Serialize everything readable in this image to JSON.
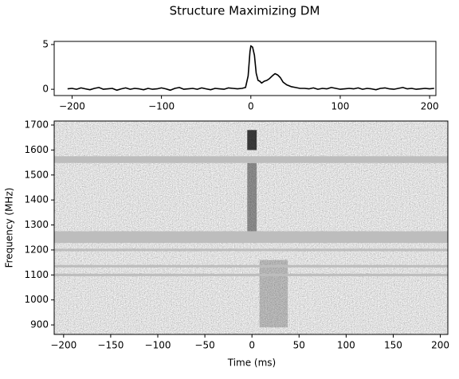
{
  "chart_data": [
    {
      "type": "line",
      "title": "Structure Maximizing DM",
      "color": "#000000",
      "x": [
        -205,
        -200,
        -195,
        -190,
        -185,
        -180,
        -175,
        -170,
        -165,
        -160,
        -155,
        -150,
        -145,
        -140,
        -135,
        -130,
        -125,
        -120,
        -115,
        -110,
        -105,
        -100,
        -95,
        -90,
        -85,
        -80,
        -75,
        -70,
        -65,
        -60,
        -55,
        -50,
        -45,
        -40,
        -35,
        -30,
        -25,
        -20,
        -15,
        -10,
        -6,
        -3,
        -1,
        0,
        2,
        4,
        6,
        8,
        10,
        12,
        15,
        18,
        21,
        24,
        27,
        30,
        33,
        36,
        40,
        45,
        50,
        55,
        60,
        65,
        70,
        75,
        80,
        85,
        90,
        95,
        100,
        105,
        110,
        115,
        120,
        125,
        130,
        135,
        140,
        145,
        150,
        155,
        160,
        165,
        170,
        175,
        180,
        185,
        190,
        195,
        200,
        205
      ],
      "values": [
        0.05,
        0.1,
        0,
        0.15,
        0.05,
        -0.05,
        0.1,
        0.2,
        0,
        0.05,
        0.1,
        -0.1,
        0.05,
        0.15,
        0,
        0.1,
        0.05,
        -0.05,
        0.1,
        0,
        0.05,
        0.15,
        0.05,
        -0.1,
        0.1,
        0.2,
        0,
        0.05,
        0.1,
        0,
        0.15,
        0.05,
        -0.05,
        0.1,
        0.05,
        0,
        0.15,
        0.1,
        0.05,
        0.1,
        0.2,
        1.5,
        4.2,
        4.85,
        4.7,
        3.8,
        1.8,
        1.0,
        0.9,
        0.7,
        0.9,
        1.0,
        1.2,
        1.5,
        1.75,
        1.6,
        1.3,
        0.8,
        0.5,
        0.3,
        0.2,
        0.1,
        0.1,
        0.05,
        0.15,
        0,
        0.1,
        0.05,
        0.2,
        0.1,
        0,
        0.05,
        0.1,
        0.05,
        0.15,
        0,
        0.1,
        0.05,
        -0.05,
        0.1,
        0.15,
        0.05,
        0,
        0.1,
        0.2,
        0.05,
        0.1,
        0,
        0.05,
        0.1,
        0.05,
        0.1
      ],
      "xlim": [
        -220,
        207
      ],
      "ylim": [
        -0.7,
        5.35
      ],
      "xticks": [
        {
          "value": -200,
          "label": "−200"
        },
        {
          "value": -100,
          "label": "−100"
        },
        0,
        100,
        200
      ],
      "yticks": [
        0,
        5
      ]
    },
    {
      "type": "waterfall",
      "xlabel": "Time (ms)",
      "ylabel": "Frequency (MHz)",
      "xlim": [
        -210,
        208
      ],
      "ylim": [
        862,
        1716
      ],
      "xticks": [
        {
          "value": -200,
          "label": "−200"
        },
        {
          "value": -150,
          "label": "−150"
        },
        {
          "value": -100,
          "label": "−100"
        },
        {
          "value": -50,
          "label": "−50"
        },
        0,
        50,
        100,
        150,
        200
      ],
      "yticks": [
        900,
        1000,
        1100,
        1200,
        1300,
        1400,
        1500,
        1600,
        1700
      ],
      "masked_bands": [
        [
          1548,
          1575
        ],
        [
          1228,
          1275
        ],
        [
          1195,
          1205
        ],
        [
          1130,
          1140
        ],
        [
          1095,
          1105
        ]
      ],
      "signal": [
        {
          "time": [
            -5,
            5
          ],
          "frequency": [
            1600,
            1680
          ],
          "intensity": 0.75
        },
        {
          "time": [
            -5,
            5
          ],
          "frequency": [
            1270,
            1548
          ],
          "intensity": 0.4
        },
        {
          "time": [
            8,
            38
          ],
          "frequency": [
            890,
            1160
          ],
          "intensity": 0.2
        }
      ]
    }
  ]
}
